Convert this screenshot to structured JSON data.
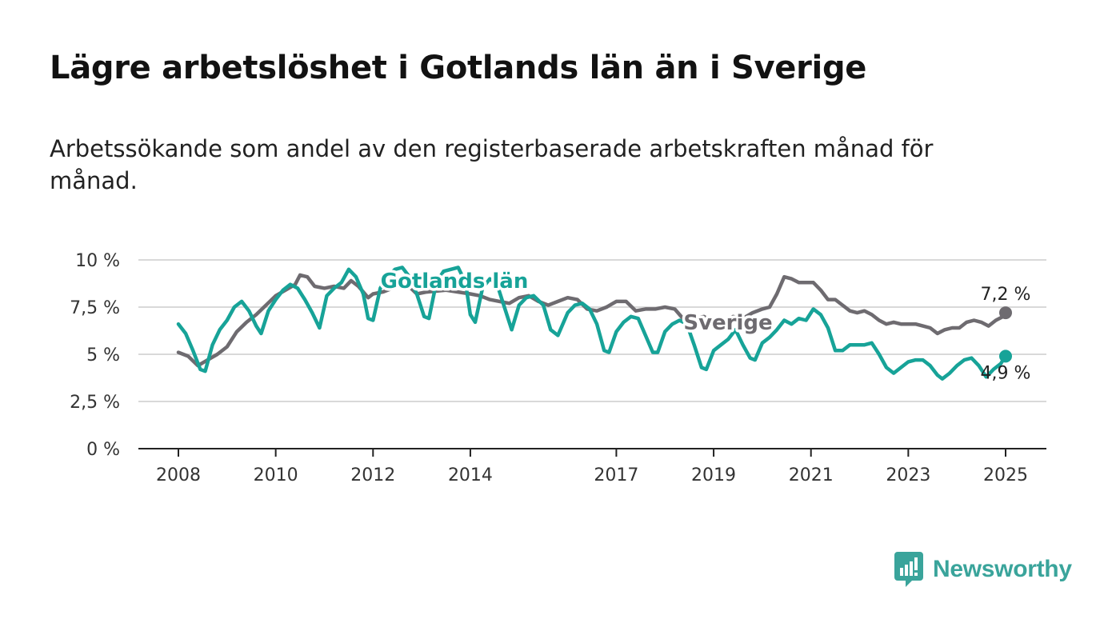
{
  "header": {
    "title": "Lägre arbetslöshet i Gotlands län än i Sverige",
    "subtitle": "Arbetssökande som andel av den registerbaserade arbetskraften månad för månad."
  },
  "brand": {
    "name": "Newsworthy",
    "color": "#3aa49b",
    "icon": "newsworthy-logo-icon"
  },
  "chart_data": {
    "type": "line",
    "title": "Lägre arbetslöshet i Gotlands län än i Sverige",
    "subtitle": "Arbetssökande som andel av den registerbaserade arbetskraften månad för månad.",
    "xlabel": "",
    "ylabel": "",
    "xlim": [
      2008.0,
      2025.0
    ],
    "ylim": [
      0,
      10
    ],
    "x_ticks": [
      2008,
      2010,
      2012,
      2014,
      2017,
      2019,
      2021,
      2023,
      2025
    ],
    "x_tick_labels": [
      "2008",
      "2010",
      "2012",
      "2014",
      "2017",
      "2019",
      "2021",
      "2023",
      "2025"
    ],
    "y_ticks": [
      0,
      2.5,
      5,
      7.5,
      10
    ],
    "y_tick_labels": [
      "0 %",
      "2,5 %",
      "5 %",
      "7,5 %",
      "10 %"
    ],
    "grid": "horizontal",
    "legend": "none",
    "series": [
      {
        "name": "Sverige",
        "color": "#6e6b70",
        "end_label": "7,2 %",
        "points": [
          [
            2008.0,
            5.1
          ],
          [
            2008.2,
            4.9
          ],
          [
            2008.4,
            4.4
          ],
          [
            2008.6,
            4.7
          ],
          [
            2008.8,
            5.0
          ],
          [
            2009.0,
            5.4
          ],
          [
            2009.2,
            6.2
          ],
          [
            2009.4,
            6.7
          ],
          [
            2009.6,
            7.1
          ],
          [
            2009.8,
            7.6
          ],
          [
            2010.0,
            8.1
          ],
          [
            2010.2,
            8.4
          ],
          [
            2010.4,
            8.7
          ],
          [
            2010.5,
            9.2
          ],
          [
            2010.65,
            9.1
          ],
          [
            2010.8,
            8.6
          ],
          [
            2011.0,
            8.5
          ],
          [
            2011.2,
            8.6
          ],
          [
            2011.4,
            8.5
          ],
          [
            2011.55,
            8.9
          ],
          [
            2011.7,
            8.6
          ],
          [
            2011.9,
            8.0
          ],
          [
            2012.0,
            8.2
          ],
          [
            2012.2,
            8.3
          ],
          [
            2012.4,
            8.5
          ],
          [
            2012.55,
            8.7
          ],
          [
            2012.7,
            8.7
          ],
          [
            2012.9,
            8.2
          ],
          [
            2013.1,
            8.3
          ],
          [
            2013.5,
            8.4
          ],
          [
            2014.0,
            8.2
          ],
          [
            2014.2,
            8.1
          ],
          [
            2014.4,
            7.9
          ],
          [
            2014.6,
            7.8
          ],
          [
            2014.8,
            7.7
          ],
          [
            2015.0,
            8.0
          ],
          [
            2015.2,
            8.1
          ],
          [
            2015.4,
            7.8
          ],
          [
            2015.6,
            7.6
          ],
          [
            2015.8,
            7.8
          ],
          [
            2016.0,
            8.0
          ],
          [
            2016.2,
            7.9
          ],
          [
            2016.4,
            7.4
          ],
          [
            2016.6,
            7.3
          ],
          [
            2016.8,
            7.5
          ],
          [
            2017.0,
            7.8
          ],
          [
            2017.2,
            7.8
          ],
          [
            2017.4,
            7.3
          ],
          [
            2017.6,
            7.4
          ],
          [
            2017.8,
            7.4
          ],
          [
            2018.0,
            7.5
          ],
          [
            2018.2,
            7.4
          ],
          [
            2018.4,
            6.8
          ],
          [
            2018.6,
            6.9
          ],
          [
            2018.8,
            7.0
          ],
          [
            2019.0,
            6.7
          ],
          [
            2019.2,
            6.8
          ],
          [
            2019.4,
            7.0
          ],
          [
            2019.6,
            6.9
          ],
          [
            2019.8,
            7.2
          ],
          [
            2020.0,
            7.4
          ],
          [
            2020.15,
            7.5
          ],
          [
            2020.3,
            8.2
          ],
          [
            2020.45,
            9.1
          ],
          [
            2020.6,
            9.0
          ],
          [
            2020.75,
            8.8
          ],
          [
            2020.9,
            8.8
          ],
          [
            2021.05,
            8.8
          ],
          [
            2021.2,
            8.4
          ],
          [
            2021.35,
            7.9
          ],
          [
            2021.5,
            7.9
          ],
          [
            2021.65,
            7.6
          ],
          [
            2021.8,
            7.3
          ],
          [
            2021.95,
            7.2
          ],
          [
            2022.1,
            7.3
          ],
          [
            2022.25,
            7.1
          ],
          [
            2022.4,
            6.8
          ],
          [
            2022.55,
            6.6
          ],
          [
            2022.7,
            6.7
          ],
          [
            2022.85,
            6.6
          ],
          [
            2023.0,
            6.6
          ],
          [
            2023.15,
            6.6
          ],
          [
            2023.3,
            6.5
          ],
          [
            2023.45,
            6.4
          ],
          [
            2023.6,
            6.1
          ],
          [
            2023.75,
            6.3
          ],
          [
            2023.9,
            6.4
          ],
          [
            2024.05,
            6.4
          ],
          [
            2024.2,
            6.7
          ],
          [
            2024.35,
            6.8
          ],
          [
            2024.5,
            6.7
          ],
          [
            2024.65,
            6.5
          ],
          [
            2024.8,
            6.8
          ],
          [
            2024.95,
            7.0
          ],
          [
            2025.0,
            7.2
          ]
        ]
      },
      {
        "name": "Gotlands län",
        "color": "#17a398",
        "end_label": "4,9 %",
        "points": [
          [
            2008.0,
            6.6
          ],
          [
            2008.15,
            6.1
          ],
          [
            2008.3,
            5.2
          ],
          [
            2008.45,
            4.2
          ],
          [
            2008.55,
            4.1
          ],
          [
            2008.7,
            5.5
          ],
          [
            2008.85,
            6.3
          ],
          [
            2009.0,
            6.8
          ],
          [
            2009.15,
            7.5
          ],
          [
            2009.3,
            7.8
          ],
          [
            2009.45,
            7.3
          ],
          [
            2009.6,
            6.5
          ],
          [
            2009.7,
            6.1
          ],
          [
            2009.85,
            7.3
          ],
          [
            2010.0,
            7.9
          ],
          [
            2010.15,
            8.4
          ],
          [
            2010.3,
            8.7
          ],
          [
            2010.45,
            8.5
          ],
          [
            2010.6,
            7.9
          ],
          [
            2010.75,
            7.2
          ],
          [
            2010.9,
            6.4
          ],
          [
            2011.05,
            8.1
          ],
          [
            2011.2,
            8.5
          ],
          [
            2011.35,
            8.8
          ],
          [
            2011.5,
            9.5
          ],
          [
            2011.65,
            9.1
          ],
          [
            2011.8,
            8.2
          ],
          [
            2011.9,
            6.9
          ],
          [
            2012.0,
            6.8
          ],
          [
            2012.15,
            8.5
          ],
          [
            2012.3,
            9.1
          ],
          [
            2012.45,
            9.5
          ],
          [
            2012.6,
            9.6
          ],
          [
            2012.75,
            9.1
          ],
          [
            2012.9,
            8.2
          ],
          [
            2013.05,
            7.0
          ],
          [
            2013.15,
            6.9
          ],
          [
            2013.3,
            8.8
          ],
          [
            2013.45,
            9.4
          ],
          [
            2013.6,
            9.5
          ],
          [
            2013.75,
            9.6
          ],
          [
            2013.9,
            8.8
          ],
          [
            2014.0,
            7.1
          ],
          [
            2014.1,
            6.7
          ],
          [
            2014.25,
            8.5
          ],
          [
            2014.4,
            9.0
          ],
          [
            2014.55,
            8.7
          ],
          [
            2014.7,
            7.5
          ],
          [
            2014.85,
            6.3
          ],
          [
            2015.0,
            7.6
          ],
          [
            2015.15,
            8.0
          ],
          [
            2015.3,
            8.1
          ],
          [
            2015.5,
            7.6
          ],
          [
            2015.65,
            6.3
          ],
          [
            2015.8,
            6.0
          ],
          [
            2016.0,
            7.2
          ],
          [
            2016.15,
            7.6
          ],
          [
            2016.3,
            7.7
          ],
          [
            2016.45,
            7.4
          ],
          [
            2016.6,
            6.6
          ],
          [
            2016.75,
            5.2
          ],
          [
            2016.85,
            5.1
          ],
          [
            2017.0,
            6.2
          ],
          [
            2017.15,
            6.7
          ],
          [
            2017.3,
            7.0
          ],
          [
            2017.45,
            6.9
          ],
          [
            2017.6,
            6.0
          ],
          [
            2017.75,
            5.1
          ],
          [
            2017.85,
            5.1
          ],
          [
            2018.0,
            6.2
          ],
          [
            2018.15,
            6.6
          ],
          [
            2018.3,
            6.8
          ],
          [
            2018.45,
            6.6
          ],
          [
            2018.6,
            5.5
          ],
          [
            2018.75,
            4.3
          ],
          [
            2018.85,
            4.2
          ],
          [
            2019.0,
            5.2
          ],
          [
            2019.15,
            5.5
          ],
          [
            2019.3,
            5.8
          ],
          [
            2019.45,
            6.3
          ],
          [
            2019.6,
            5.5
          ],
          [
            2019.75,
            4.8
          ],
          [
            2019.85,
            4.7
          ],
          [
            2020.0,
            5.6
          ],
          [
            2020.15,
            5.9
          ],
          [
            2020.3,
            6.3
          ],
          [
            2020.45,
            6.8
          ],
          [
            2020.6,
            6.6
          ],
          [
            2020.75,
            6.9
          ],
          [
            2020.9,
            6.8
          ],
          [
            2021.05,
            7.4
          ],
          [
            2021.2,
            7.1
          ],
          [
            2021.35,
            6.4
          ],
          [
            2021.5,
            5.2
          ],
          [
            2021.65,
            5.2
          ],
          [
            2021.8,
            5.5
          ],
          [
            2021.95,
            5.5
          ],
          [
            2022.1,
            5.5
          ],
          [
            2022.25,
            5.6
          ],
          [
            2022.4,
            5.0
          ],
          [
            2022.55,
            4.3
          ],
          [
            2022.7,
            4.0
          ],
          [
            2022.85,
            4.3
          ],
          [
            2023.0,
            4.6
          ],
          [
            2023.15,
            4.7
          ],
          [
            2023.3,
            4.7
          ],
          [
            2023.45,
            4.4
          ],
          [
            2023.6,
            3.9
          ],
          [
            2023.7,
            3.7
          ],
          [
            2023.85,
            4.0
          ],
          [
            2024.0,
            4.4
          ],
          [
            2024.15,
            4.7
          ],
          [
            2024.3,
            4.8
          ],
          [
            2024.45,
            4.4
          ],
          [
            2024.6,
            3.8
          ],
          [
            2024.75,
            4.2
          ],
          [
            2024.9,
            4.5
          ],
          [
            2025.0,
            4.9
          ]
        ]
      }
    ]
  }
}
